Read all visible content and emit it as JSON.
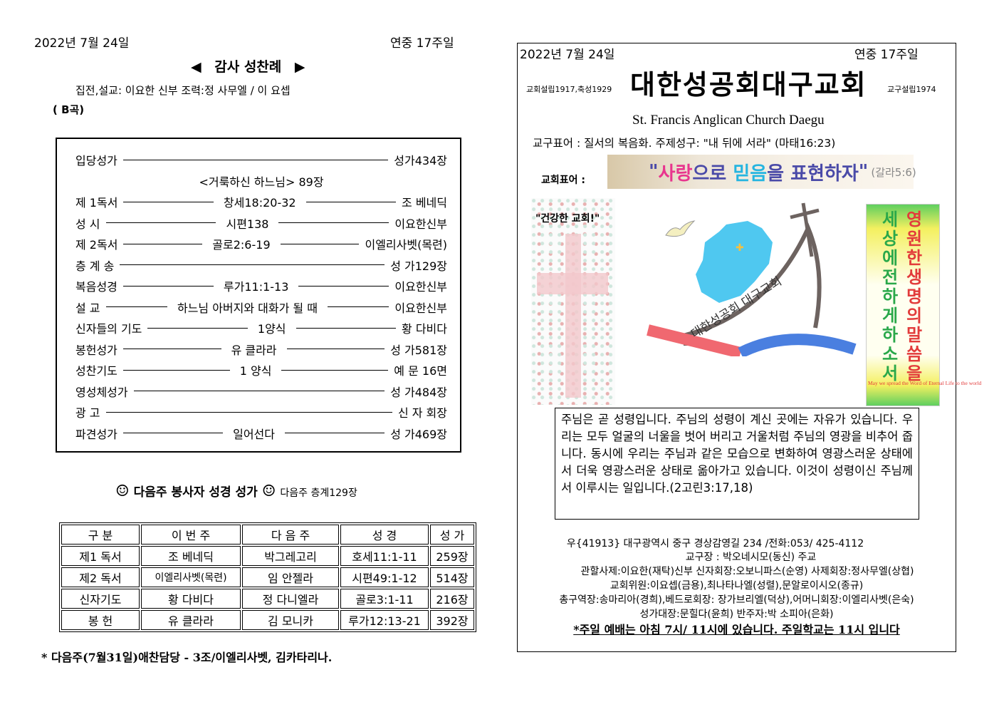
{
  "left": {
    "date": "2022년 7월 24일",
    "week": "연중 17주일",
    "title": "감사 성찬례",
    "officiants": "집전,설교: 이요한 신부  조력:정 사무엘 / 이 요셉",
    "setting": "( B곡)",
    "order": [
      {
        "label": "입당성가",
        "mid": "",
        "right": "성가434장"
      },
      {
        "label": "",
        "mid": "<거룩하신 하느님> 89장",
        "right": ""
      },
      {
        "label": "제 1독서",
        "mid": "창세18:20-32",
        "right": "조  베네딕"
      },
      {
        "label": "성    시",
        "mid": "시편138",
        "right": "이요한신부"
      },
      {
        "label": "제 2독서",
        "mid": "골로2:6-19",
        "right": "이엘리사벳(목련)"
      },
      {
        "label": "층 계 송",
        "mid": "",
        "right": "성 가129장"
      },
      {
        "label": "복음성경",
        "mid": "루가11:1-13",
        "right": "이요한신부"
      },
      {
        "label": "설    교",
        "mid": "하느님 아버지와 대화가 될 때",
        "right": "이요한신부"
      },
      {
        "label": "신자들의 기도",
        "mid": "1양식",
        "right": "황  다비다"
      },
      {
        "label": "봉헌성가",
        "mid": "유  클라라",
        "right": "성 가581장"
      },
      {
        "label": "성찬기도",
        "mid": "1 양식",
        "right": "예 문 16면"
      },
      {
        "label": "영성체성가",
        "mid": "",
        "right": "성 가484장"
      },
      {
        "label": "광    고",
        "mid": "",
        "right": "신 자 회장"
      },
      {
        "label": "파견성가",
        "mid": "일어선다",
        "right": "성 가469장"
      }
    ],
    "next_heading": "다음주 봉사자 성경 성가",
    "next_hymn": "다음주 층계129장",
    "table": {
      "headers": [
        "구   분",
        "이  번  주",
        "다  음  주",
        "성      경",
        "성 가"
      ],
      "rows": [
        [
          "제1 독서",
          "조  베네딕",
          "박그레고리",
          "호세11:1-11",
          "259장"
        ],
        [
          "제2 독서",
          "이엘리사벳(목련)",
          "임  안젤라",
          "시편49:1-12",
          "514장"
        ],
        [
          "신자기도",
          "황  다비다",
          "정 다니엘라",
          "골로3:1-11",
          "216장"
        ],
        [
          "봉      헌",
          "유  클라라",
          "김  모니카",
          "루가12:13-21",
          "392장"
        ]
      ]
    },
    "note": "* 다음주(7월31일)애찬담당 - 3조/이엘리사벳, 김카타리나."
  },
  "right": {
    "date": "2022년 7월 24일",
    "week": "연중 17주일",
    "founded": "교회설립1917,축성1929",
    "church_name": "대한성공회대구교회",
    "diocese_founded": "교구설립1974",
    "english_name": "St. Francis Anglican Church Daegu",
    "diocese_motto": "교구표어 : 질서의 복음화. 주제성구: \"내 뒤에 서라\" (마태16:23)",
    "church_motto_label": "교회표어 :",
    "church_motto": {
      "q1": "\"",
      "w1": "사랑",
      "w2": "으로 ",
      "w3": "믿음",
      "w4": "을 표현하자",
      "q2": "\"",
      "ref": "(갈라5:6)"
    },
    "left_image_title": "\"건강한 교회!\"",
    "logo_text": "대한성공회 대구교회",
    "banner": {
      "col1": "영원한 생명의 말씀을",
      "col2": "세상에 전하게 하소서",
      "english": "May we spread the Word of Eternal Life to the world"
    },
    "quote": "주님은 곧 성령입니다. 주님의 성령이 계신 곳에는 자유가 있습니다. 우리는 모두 얼굴의 너울을 벗어 버리고 거울처럼 주님의 영광을 비추어 줍니다. 동시에 우리는 주님과 같은 모습으로 변화하여 영광스러운 상태에서 더욱 영광스러운 상태로 옮아가고 있습니다. 이것이 성령이신 주님께서 이루시는 일입니다.(2고린3:17,18)",
    "info": [
      "우{41913} 대구광역시 중구 경상감영길 234 /전화:053/ 425-4112",
      "교구장 : 박오네시모(동신) 주교",
      "관할사제:이요한(재탁)신부 신자회장:오보니파스(순영) 사제회장:정사무엘(상협)",
      "교회위원:이요셉(금용),최나타나엘(성렬),문알로이시오(종규)",
      "총구역장:송마리아(경희),베드로회장: 장가브리엘(덕상),어머니회장:이엘리사벳(은숙)",
      "성가대장:문힐다(윤희) 반주자:박 소피아(은화)"
    ],
    "service_times": "*주일 예배는 아침 7시/ 11시에 있습니다. 주일학교는 11시 입니다"
  },
  "colors": {
    "pink": "#e8358e",
    "cyan": "#25b5e0",
    "purple": "#4a4aa8",
    "map": "#4fc8f0",
    "red_band": "#f06870",
    "blue_band": "#4a7fe0",
    "green": "#2aa84a",
    "red_text": "#e23b3b"
  }
}
